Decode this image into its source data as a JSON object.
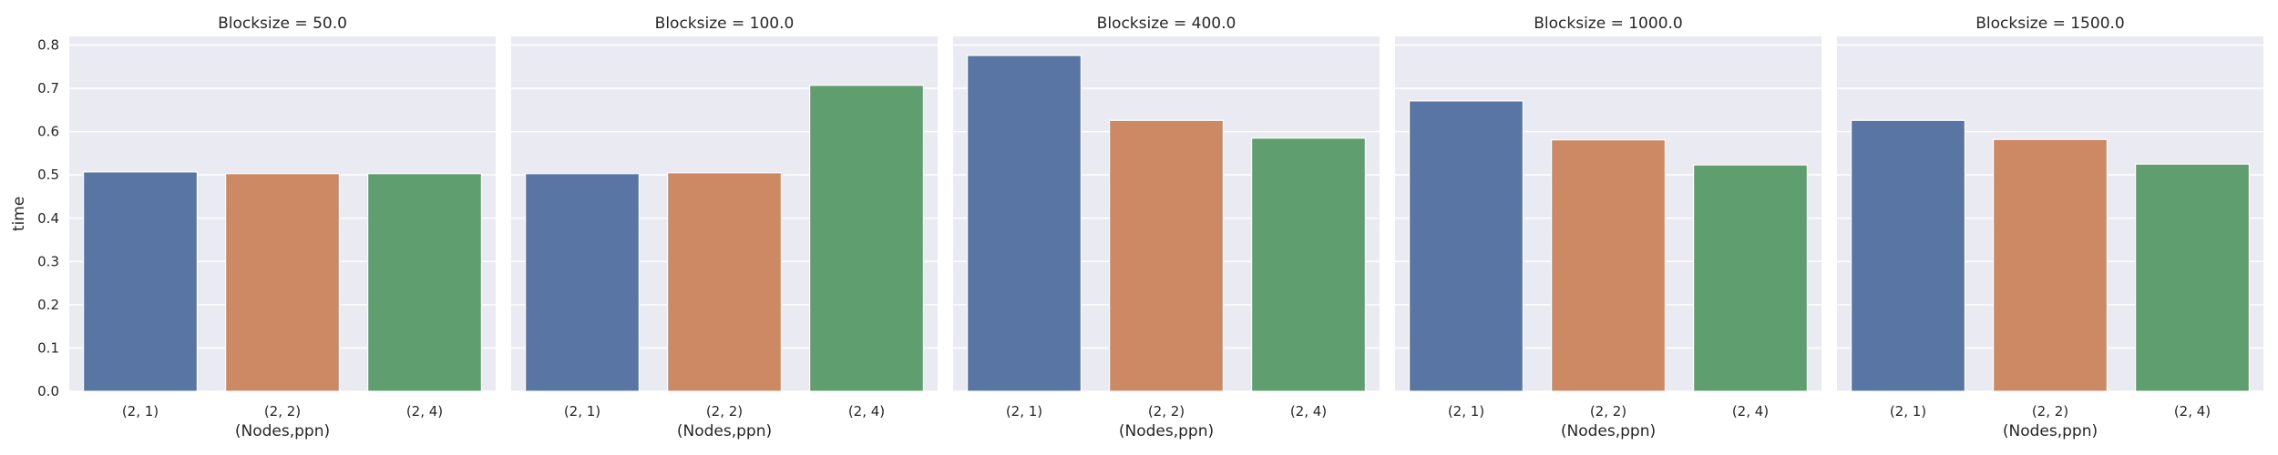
{
  "chart_data": {
    "type": "bar",
    "layout": "facet-columns",
    "xlabel": "(Nodes,ppn)",
    "ylabel": "time",
    "ylim": [
      0,
      0.82
    ],
    "yticks": [
      0.0,
      0.1,
      0.2,
      0.3,
      0.4,
      0.5,
      0.6,
      0.7,
      0.8
    ],
    "ytick_labels": [
      "0.0",
      "0.1",
      "0.2",
      "0.3",
      "0.4",
      "0.5",
      "0.6",
      "0.7",
      "0.8"
    ],
    "categories": [
      "(2, 1)",
      "(2, 2)",
      "(2, 4)"
    ],
    "colors": [
      "#5875a4",
      "#cc8963",
      "#5f9e6e"
    ],
    "grid": true,
    "panels": [
      {
        "title": "Blocksize = 50.0",
        "values": [
          0.507,
          0.503,
          0.503
        ]
      },
      {
        "title": "Blocksize = 100.0",
        "values": [
          0.503,
          0.505,
          0.707
        ]
      },
      {
        "title": "Blocksize = 400.0",
        "values": [
          0.776,
          0.626,
          0.585
        ]
      },
      {
        "title": "Blocksize = 1000.0",
        "values": [
          0.671,
          0.581,
          0.523
        ]
      },
      {
        "title": "Blocksize = 1500.0",
        "values": [
          0.626,
          0.582,
          0.525
        ]
      }
    ]
  }
}
